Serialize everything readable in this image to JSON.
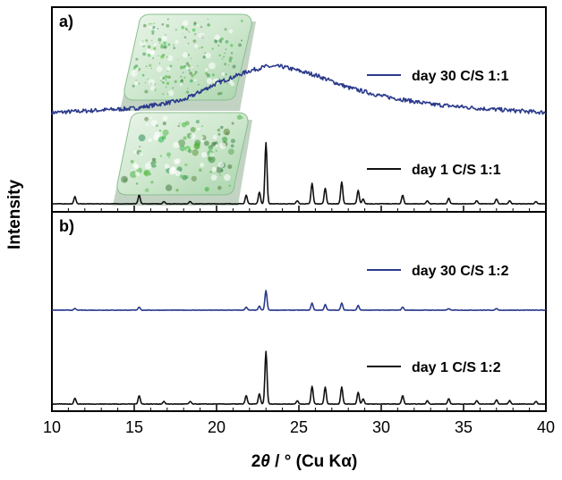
{
  "chart_data": {
    "type": "line",
    "xlabel_parts": [
      "2",
      "θ",
      " / ° (Cu Kα)"
    ],
    "ylabel": "Intensity",
    "xlim": [
      10,
      40
    ],
    "xticks": [
      "10",
      "15",
      "20",
      "25",
      "30",
      "35",
      "40"
    ],
    "x_minor_step": 1,
    "grid": false,
    "panels": [
      {
        "label": "a)",
        "series": [
          {
            "name": "day 30 C/S 1:1",
            "color": "#2b3a8c",
            "profile": "amorphous",
            "x": [
              10,
              15,
              18,
              20,
              22,
              23,
              24,
              26,
              28,
              30,
              33,
              36,
              40
            ],
            "y": [
              0.3,
              0.31,
              0.33,
              0.37,
              0.4,
              0.41,
              0.41,
              0.39,
              0.36,
              0.34,
              0.32,
              0.31,
              0.3
            ]
          },
          {
            "name": "day 1 C/S 1:1",
            "color": "#111111",
            "profile": "crystalline",
            "peaks_x": [
              11.4,
              15.3,
              16.8,
              18.4,
              21.8,
              22.6,
              23.0,
              24.9,
              25.8,
              26.6,
              27.6,
              28.6,
              28.9,
              31.3,
              32.8,
              34.1,
              35.8,
              37.0,
              37.8,
              39.4
            ],
            "peaks_y": [
              0.9,
              1.1,
              0.3,
              0.3,
              1.1,
              1.5,
              7.8,
              0.4,
              2.6,
              2.0,
              2.8,
              1.7,
              0.6,
              1.1,
              0.4,
              0.7,
              0.4,
              0.6,
              0.4,
              0.3
            ]
          }
        ]
      },
      {
        "label": "b)",
        "series": [
          {
            "name": "day 30 C/S 1:2",
            "color": "#2b3a8c",
            "profile": "crystalline",
            "peaks_x": [
              11.4,
              15.3,
              21.8,
              22.6,
              23.0,
              25.8,
              26.6,
              27.6,
              28.6,
              31.3,
              34.1,
              37.0
            ],
            "peaks_y": [
              0.2,
              0.4,
              0.4,
              0.5,
              2.5,
              0.9,
              0.7,
              0.9,
              0.6,
              0.4,
              0.2,
              0.2
            ]
          },
          {
            "name": "day 1 C/S 1:2",
            "color": "#111111",
            "profile": "crystalline",
            "peaks_x": [
              11.4,
              15.3,
              16.8,
              18.4,
              21.8,
              22.6,
              23.0,
              24.9,
              25.8,
              26.6,
              27.6,
              28.6,
              28.9,
              31.3,
              32.8,
              34.1,
              35.8,
              37.0,
              37.8,
              39.4
            ],
            "peaks_y": [
              0.7,
              1.0,
              0.3,
              0.3,
              1.0,
              1.2,
              6.2,
              0.4,
              2.1,
              2.0,
              2.0,
              1.4,
              0.6,
              1.0,
              0.4,
              0.6,
              0.4,
              0.5,
              0.4,
              0.3
            ]
          }
        ]
      }
    ]
  },
  "insets": [
    {
      "name": "day 30 sample photo",
      "spot_density": "fine"
    },
    {
      "name": "day 1 sample photo",
      "spot_density": "coarse"
    }
  ]
}
